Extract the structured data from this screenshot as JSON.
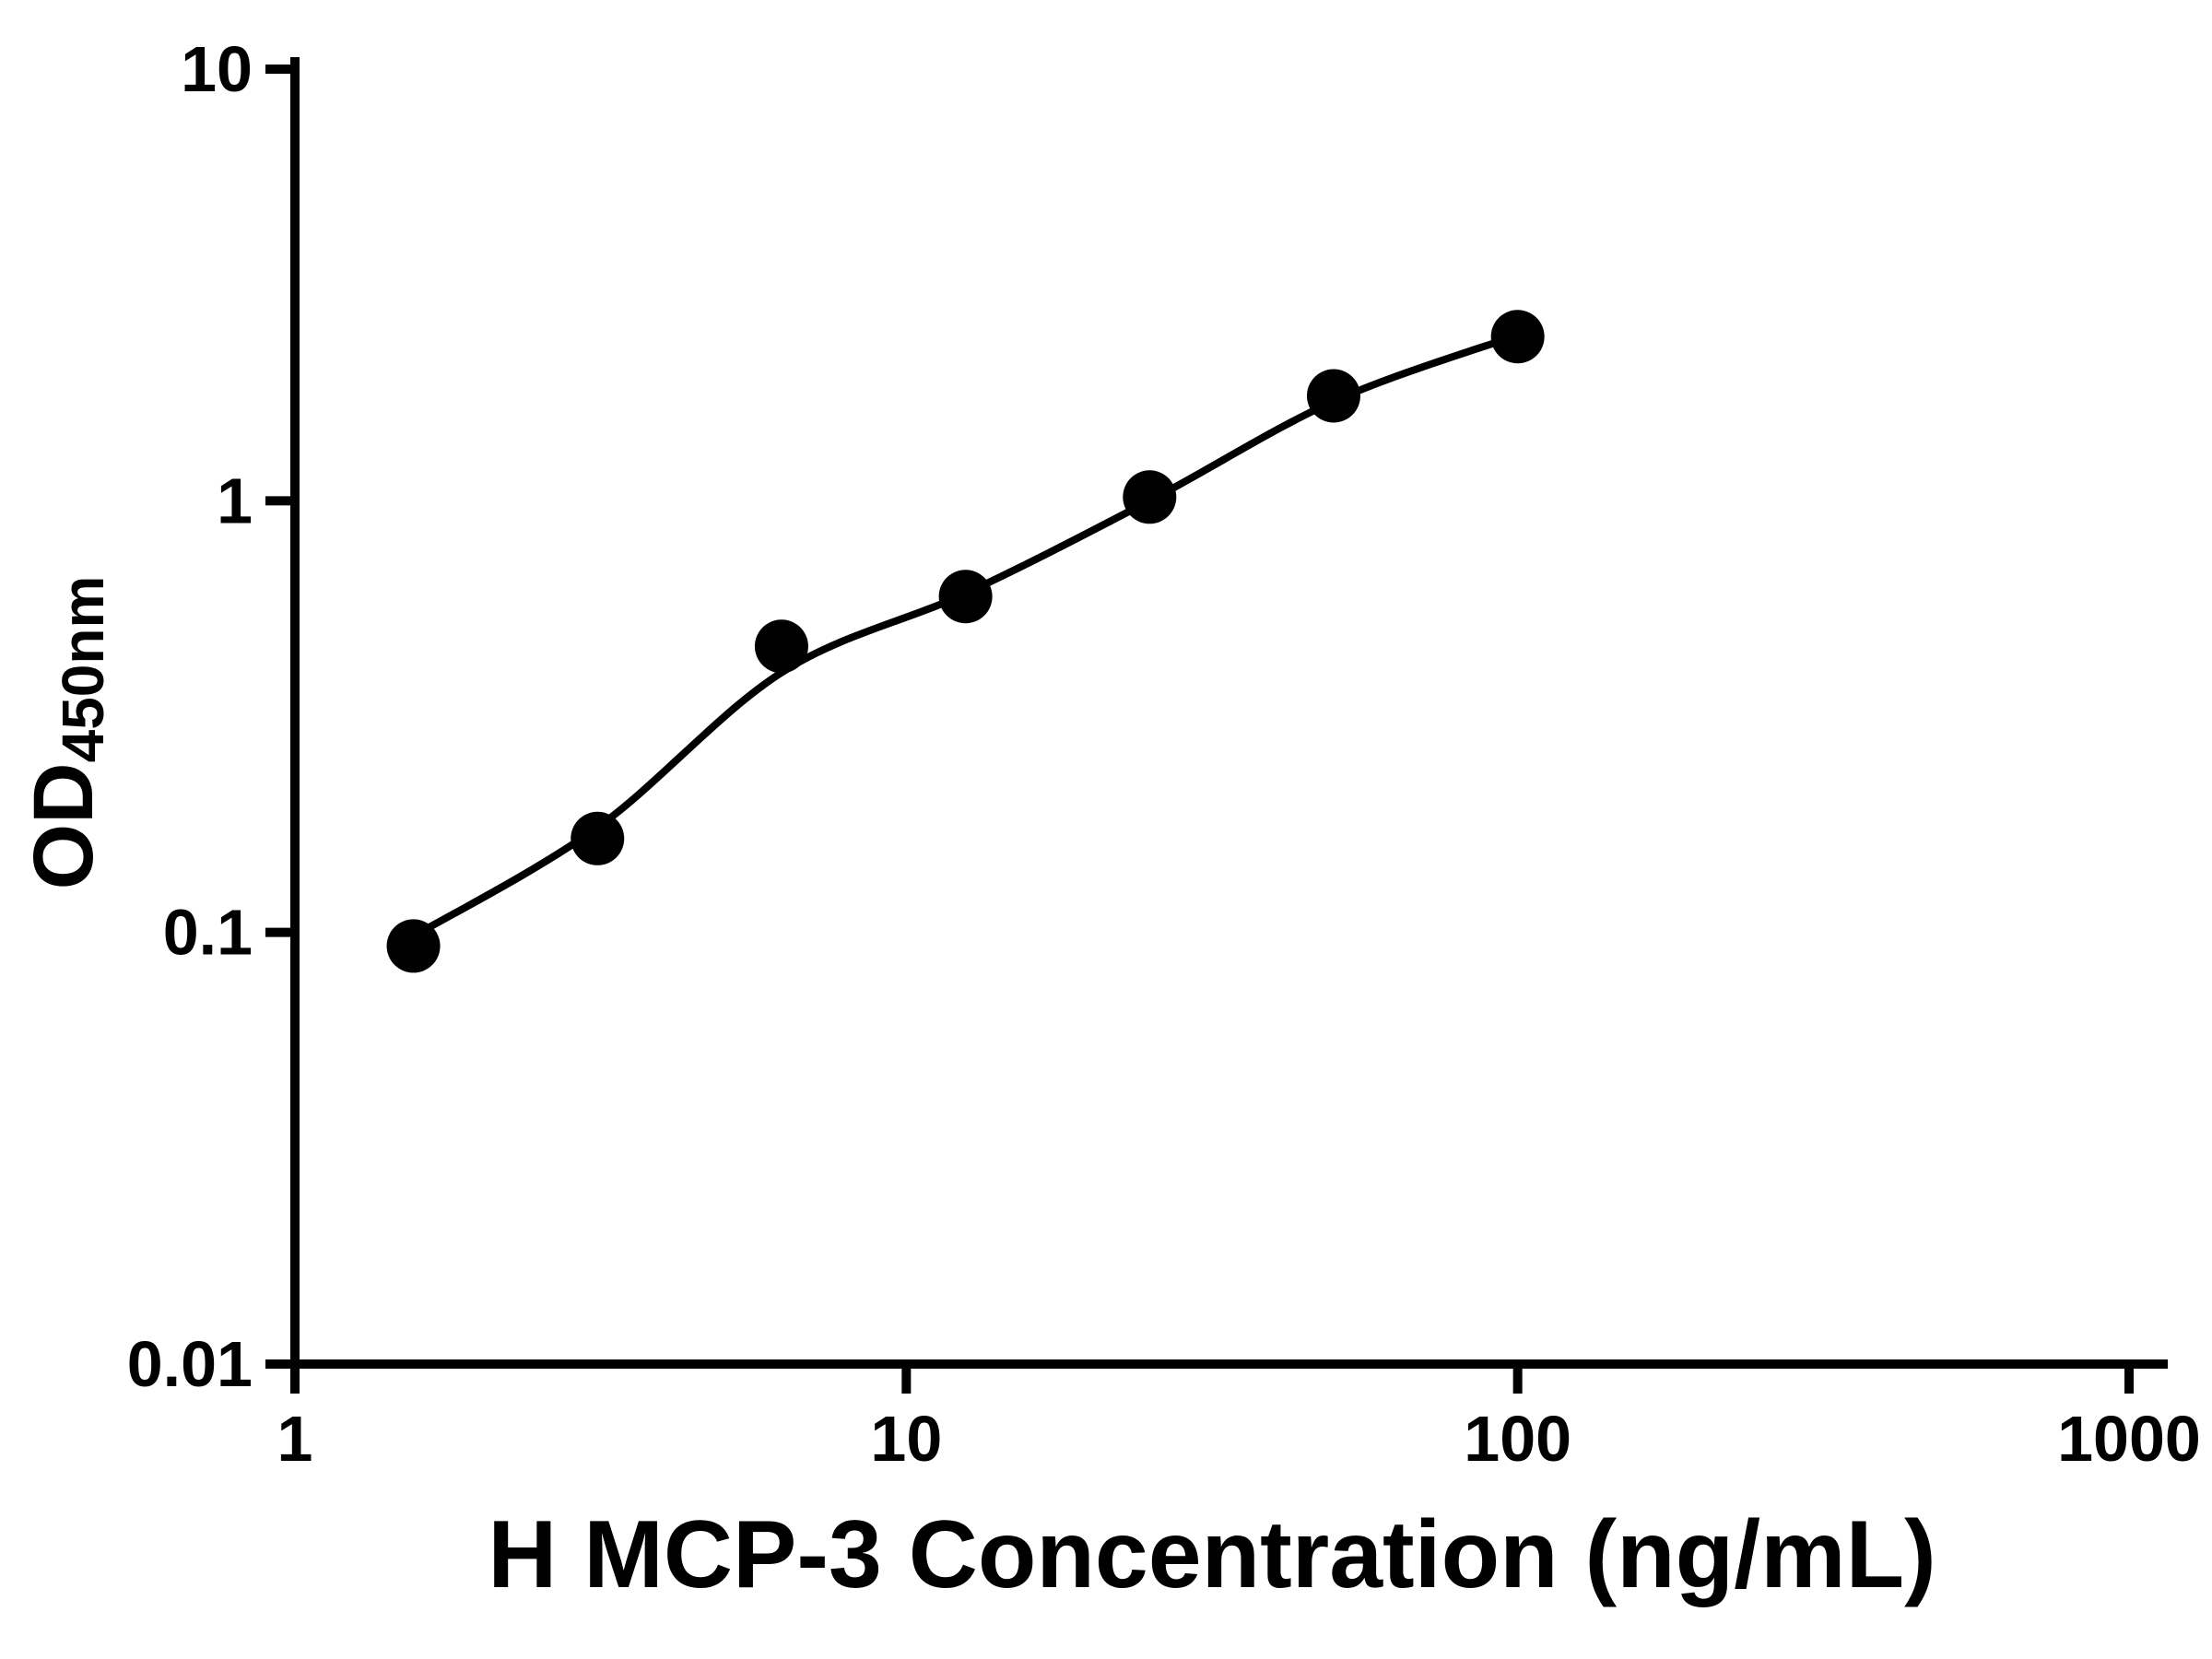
{
  "chart_data": {
    "type": "scatter",
    "title": "",
    "xlabel": "H MCP-3 Concentration (ng/mL)",
    "ylabel": "OD450nm",
    "ylabel_main": "OD",
    "ylabel_sub": "450nm",
    "x_scale": "log",
    "y_scale": "log",
    "xlim": [
      1,
      1000
    ],
    "ylim": [
      0.01,
      10
    ],
    "x_ticks": [
      "1",
      "10",
      "100",
      "1000"
    ],
    "y_ticks": [
      "0.01",
      "0.1",
      "1",
      "10"
    ],
    "grid": false,
    "legend": "none",
    "marker_color": "#000000",
    "line_color": "#000000",
    "points": {
      "x": [
        1.5625,
        3.125,
        6.25,
        12.5,
        25,
        50,
        100
      ],
      "y": [
        0.093,
        0.165,
        0.46,
        0.6,
        1.02,
        1.75,
        2.4
      ]
    },
    "fit_curve": {
      "x": [
        1.5625,
        3.125,
        6.25,
        12.5,
        25,
        50,
        100
      ],
      "y": [
        0.098,
        0.175,
        0.4,
        0.61,
        1.0,
        1.7,
        2.42
      ]
    }
  }
}
